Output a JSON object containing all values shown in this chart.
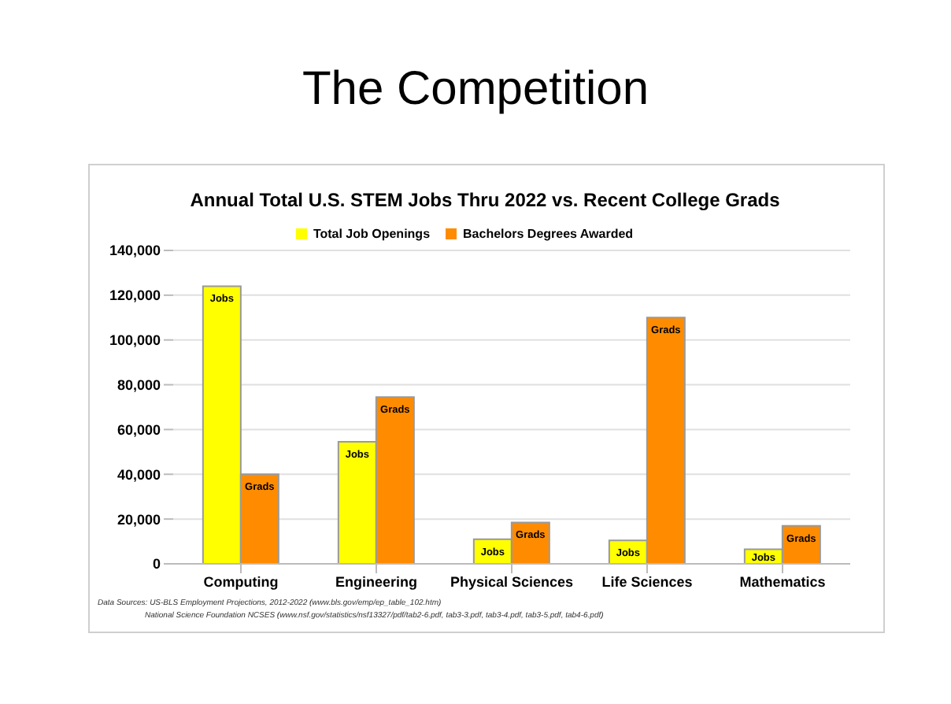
{
  "chart_data": {
    "type": "bar",
    "title": "The Competition",
    "subtitle": "Annual Total U.S. STEM Jobs Thru 2022 vs. Recent College Grads",
    "categories": [
      "Computing",
      "Engineering",
      "Physical Sciences",
      "Life Sciences",
      "Mathematics"
    ],
    "series": [
      {
        "name": "Total Job Openings",
        "color": "#ffff00",
        "values": [
          124000,
          54500,
          11000,
          10500,
          6500
        ],
        "value_labels": [
          "Jobs",
          "Jobs",
          "Jobs",
          "Jobs",
          "Jobs"
        ]
      },
      {
        "name": "Bachelors Degrees Awarded",
        "color": "#ff8c00",
        "values": [
          40000,
          74500,
          18500,
          110000,
          17000
        ],
        "value_labels": [
          "Grads",
          "Grads",
          "Grads",
          "Grads",
          "Grads"
        ]
      }
    ],
    "ylim": [
      0,
      140000
    ],
    "yticks": [
      0,
      {
        "value": 20000,
        "label": "20,000"
      },
      {
        "value": 40000,
        "label": "40,000"
      },
      {
        "value": 60000,
        "label": "60,000"
      },
      {
        "value": 80000,
        "label": "80,000"
      },
      {
        "value": 100000,
        "label": "100,000"
      },
      {
        "value": 120000,
        "label": "120,000"
      },
      {
        "value": 140000,
        "label": "140,000"
      }
    ],
    "grid": "y",
    "legend": "top",
    "annotations": [
      "Data Sources: US-BLS Employment Projections, 2012-2022 (www.bls.gov/emp/ep_table_102.htm)",
      "National Science Foundation NCSES (www.nsf.gov/statistics/nsf13327/pdf/tab2-6.pdf, tab3-3.pdf, tab3-4.pdf, tab3-5.pdf, tab4-6.pdf)"
    ]
  }
}
